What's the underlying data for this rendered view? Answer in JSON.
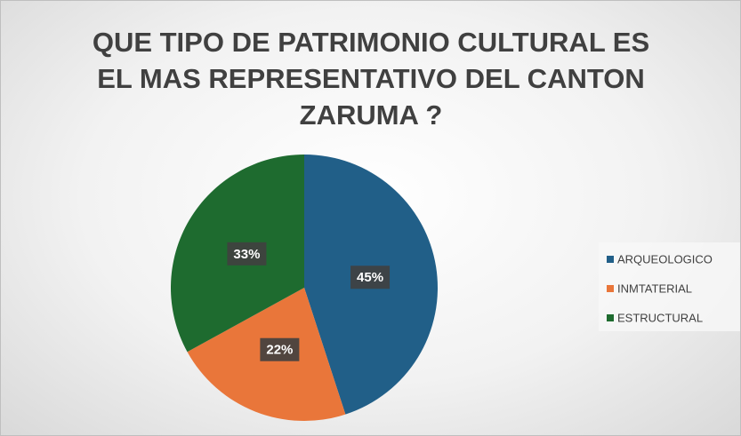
{
  "chart_data": {
    "type": "pie",
    "title": "QUE TIPO DE PATRIMONIO CULTURAL ES EL MAS REPRESENTATIVO DEL CANTON ZARUMA ?",
    "categories": [
      "ARQUEOLOGICO",
      "INMTATERIAL",
      "ESTRUCTURAL"
    ],
    "values": [
      45,
      22,
      33
    ],
    "value_labels": [
      "45%",
      "22%",
      "33%"
    ],
    "colors": [
      "#215f88",
      "#e9763a",
      "#1e6b2f"
    ],
    "legend": "right"
  }
}
